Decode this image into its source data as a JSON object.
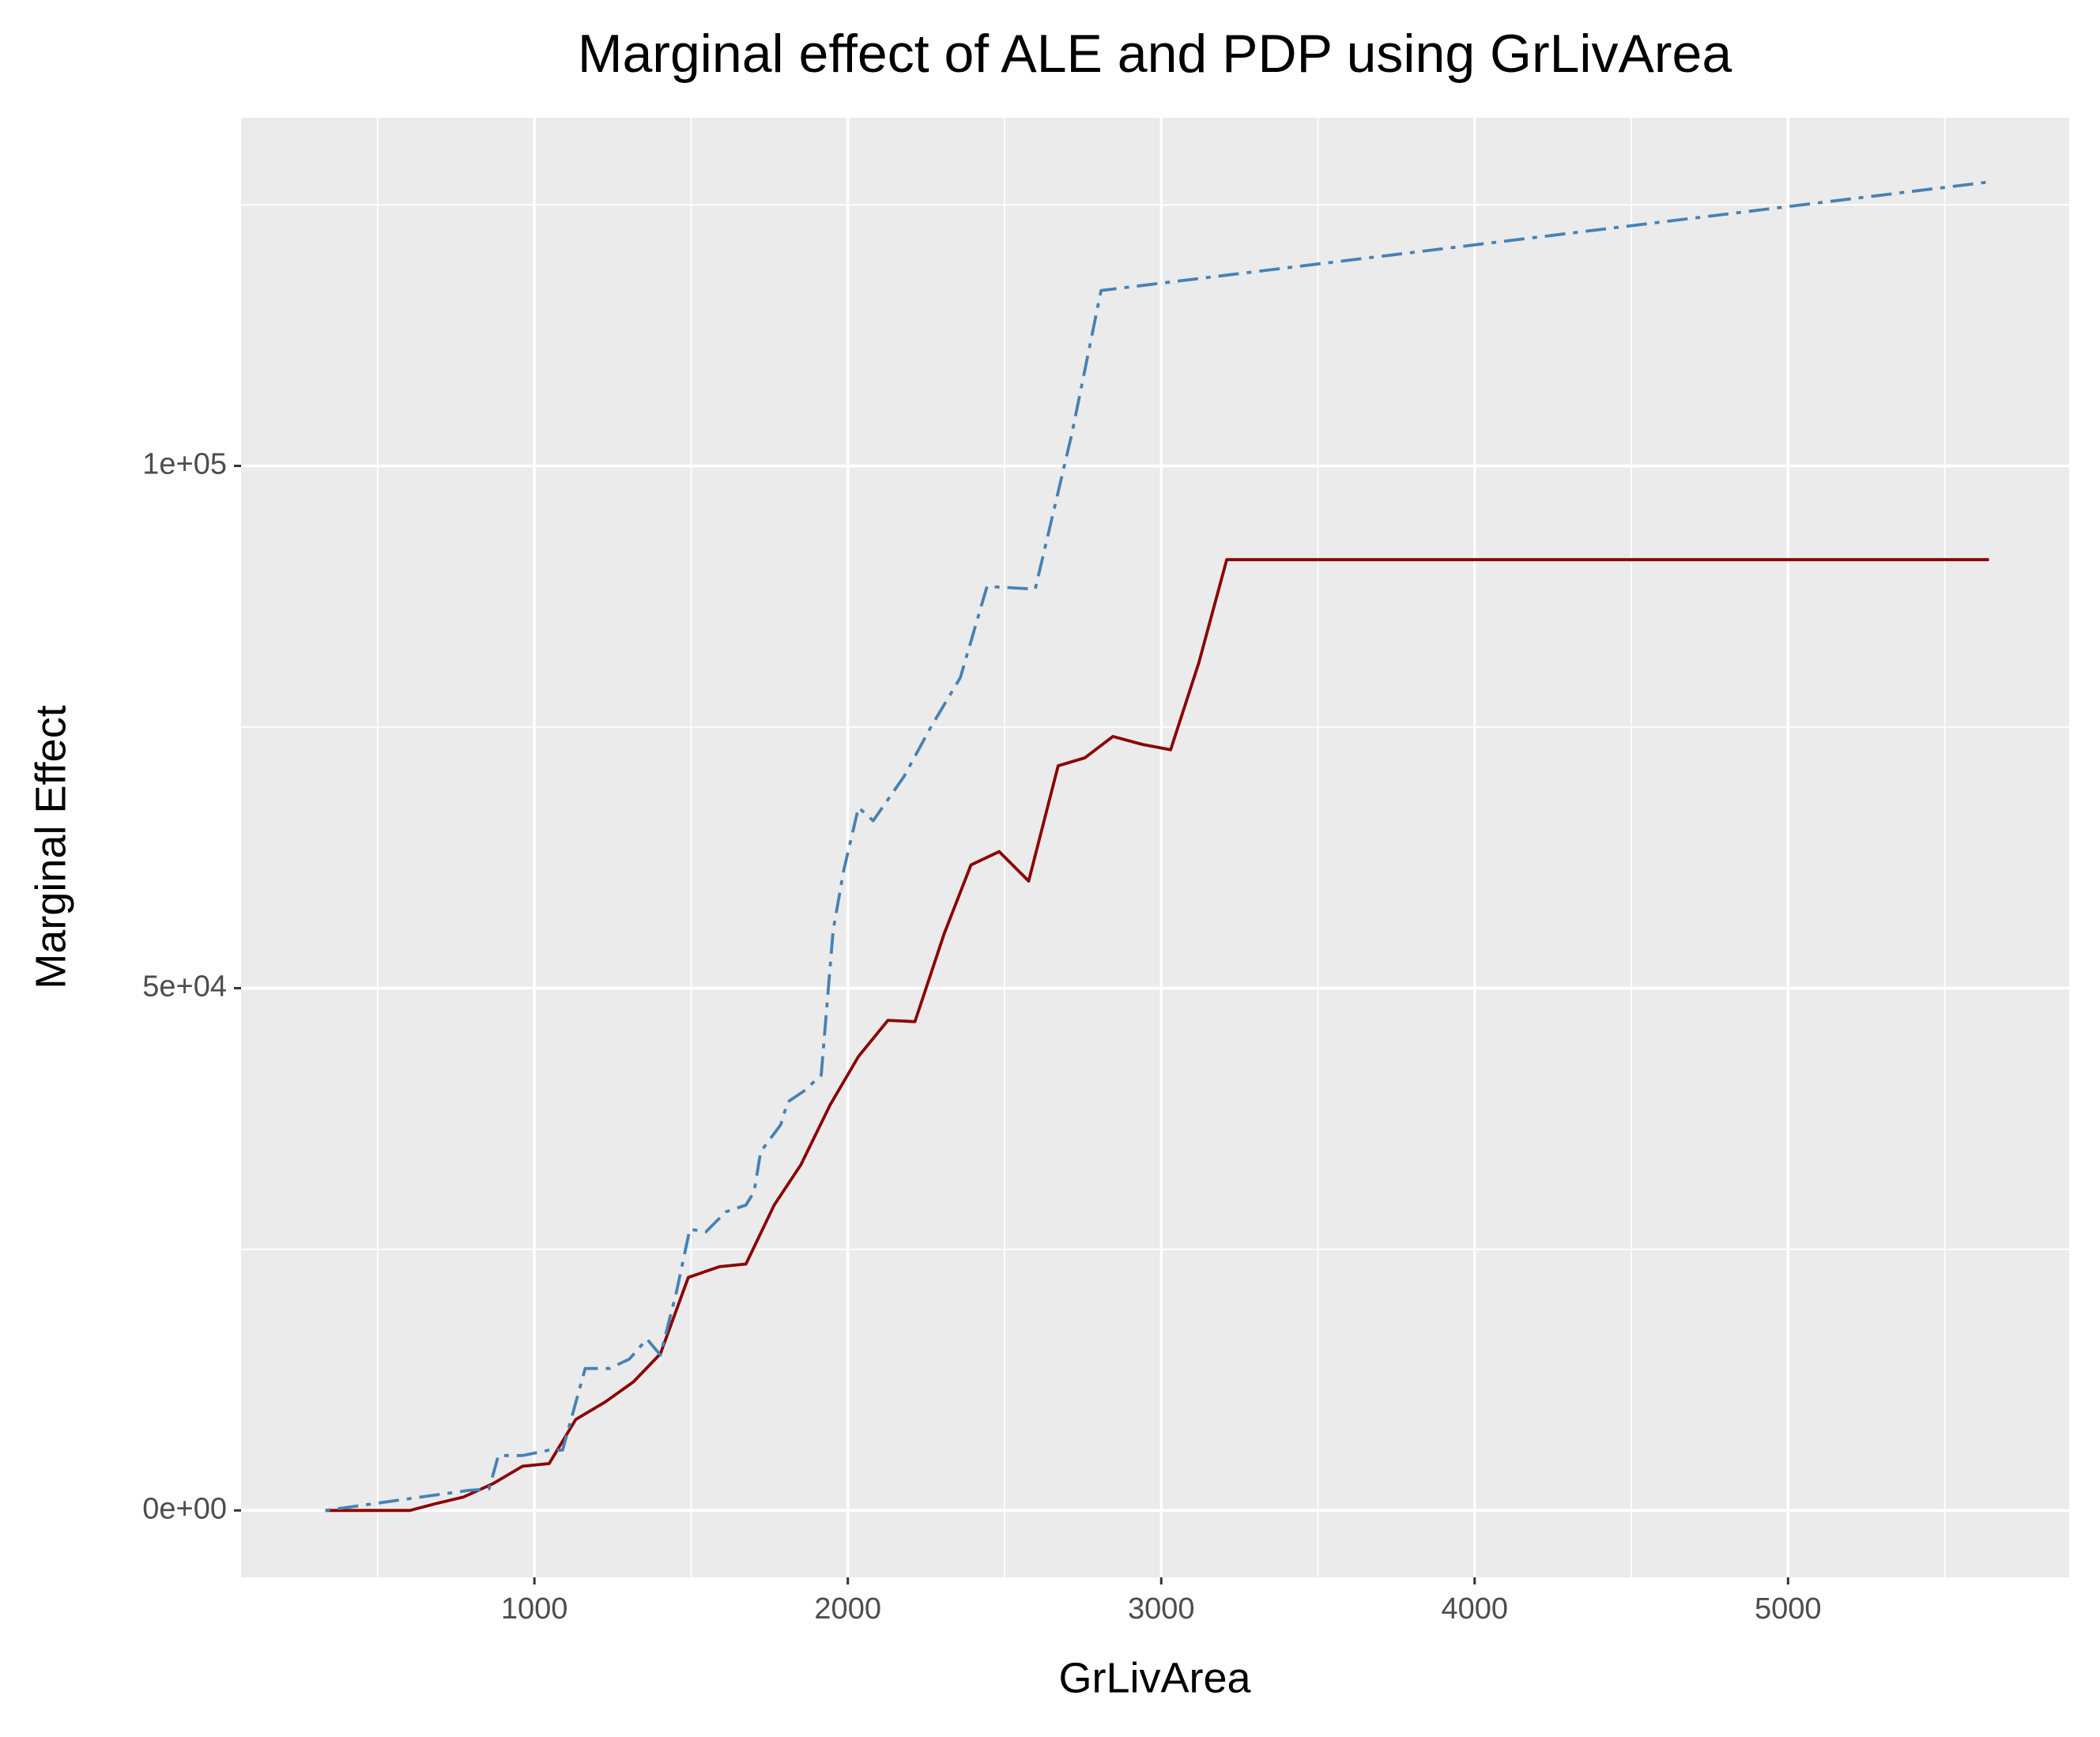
{
  "chart_data": {
    "type": "line",
    "title": "Marginal effect of ALE and PDP using GrLivArea",
    "xlabel": "GrLivArea",
    "ylabel": "Marginal Effect",
    "xlim": [
      64,
      5897
    ],
    "ylim": [
      -6410,
      133333
    ],
    "xticks": [
      1000,
      2000,
      3000,
      4000,
      5000
    ],
    "yticks": [
      {
        "value": 0,
        "label": "0e+00"
      },
      {
        "value": 50000,
        "label": "5e+04"
      },
      {
        "value": 100000,
        "label": "1e+05"
      }
    ],
    "xminor": [
      500,
      1500,
      2500,
      3500,
      4500,
      5500
    ],
    "yminor": [
      25000,
      75000,
      125000
    ],
    "grid": true,
    "series": [
      {
        "color": "#8b0000",
        "dash": "solid",
        "x": [
          333,
          603,
          684,
          774,
          868,
          962,
          1047,
          1132,
          1226,
          1316,
          1402,
          1491,
          1590,
          1675,
          1765,
          1850,
          1944,
          2034,
          2128,
          2214,
          2308,
          2393,
          2483,
          2577,
          2671,
          2756,
          2846,
          2940,
          3030,
          3120,
          3209,
          5641
        ],
        "values": [
          0,
          0,
          641,
          1282,
          2564,
          4231,
          4487,
          8718,
          10385,
          12308,
          15000,
          22308,
          23333,
          23590,
          29231,
          33077,
          38846,
          43462,
          46923,
          46795,
          55256,
          61795,
          63077,
          60256,
          71282,
          72051,
          74103,
          73333,
          72821,
          81154,
          91026,
          91026
        ]
      },
      {
        "color": "#4682b4",
        "dash": "dotdash",
        "x": [
          333,
          577,
          791,
          855,
          885,
          962,
          1047,
          1090,
          1162,
          1239,
          1303,
          1359,
          1402,
          1453,
          1496,
          1547,
          1611,
          1675,
          1701,
          1722,
          1786,
          1808,
          1859,
          1915,
          1953,
          1987,
          2034,
          2081,
          2179,
          2265,
          2359,
          2444,
          2598,
          2714,
          2808,
          5641
        ],
        "values": [
          0,
          1026,
          1923,
          2051,
          5256,
          5256,
          5769,
          5769,
          13590,
          13590,
          14487,
          16410,
          14872,
          20897,
          26923,
          26667,
          28590,
          29231,
          30513,
          34359,
          36923,
          39103,
          40128,
          41667,
          55513,
          61282,
          67308,
          66026,
          70256,
          75000,
          79744,
          88462,
          88205,
          102949,
          116795,
          127179
        ]
      }
    ]
  }
}
